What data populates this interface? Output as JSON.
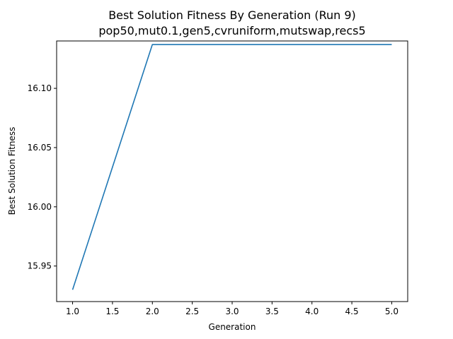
{
  "chart_data": {
    "type": "line",
    "title": "Best Solution Fitness By Generation (Run 9)",
    "subtitle": "pop50,mut0.1,gen5,cvruniform,mutswap,recs5",
    "xlabel": "Generation",
    "ylabel": "Best Solution Fitness",
    "xlim": [
      0.8,
      5.2
    ],
    "ylim": [
      15.92,
      16.14
    ],
    "x_ticks": [
      1.0,
      1.5,
      2.0,
      2.5,
      3.0,
      3.5,
      4.0,
      4.5,
      5.0
    ],
    "x_tick_labels": [
      "1.0",
      "1.5",
      "2.0",
      "2.5",
      "3.0",
      "3.5",
      "4.0",
      "4.5",
      "5.0"
    ],
    "y_ticks": [
      15.95,
      16.0,
      16.05,
      16.1
    ],
    "y_tick_labels": [
      "15.95",
      "16.00",
      "16.05",
      "16.10"
    ],
    "grid": false,
    "legend": "none",
    "series": [
      {
        "color": "#1f77b4",
        "x": [
          1,
          2,
          3,
          4,
          5
        ],
        "y": [
          15.93,
          16.137,
          16.137,
          16.137,
          16.137
        ]
      }
    ]
  }
}
